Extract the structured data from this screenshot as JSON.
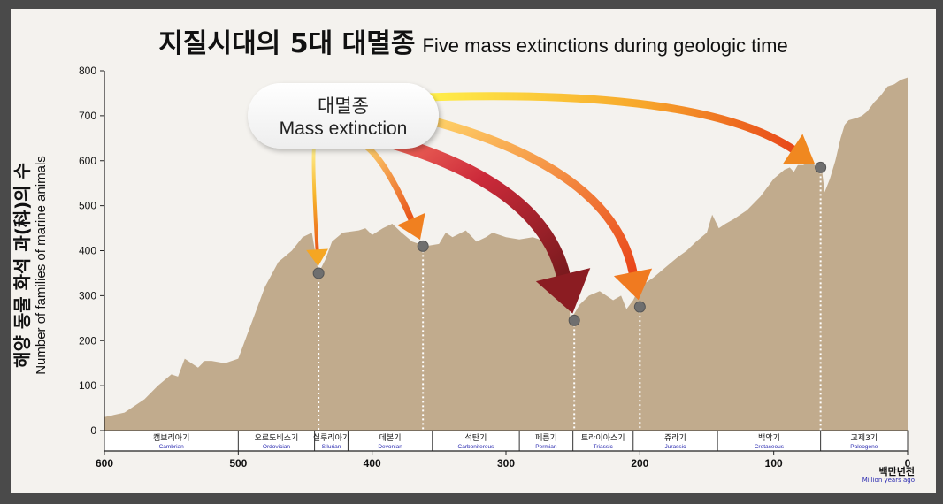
{
  "title": {
    "korean": "지질시대의 5대 대멸종",
    "english": "Five mass extinctions during geologic time"
  },
  "callout": {
    "korean": "대멸종",
    "english": "Mass extinction"
  },
  "chart_data": {
    "type": "area",
    "ylabel_korean": "해양 동물 화석 과(科)의 수",
    "ylabel_english": "Number of families of marine animals",
    "xlabel_korean": "백만년전",
    "xlabel_english": "Million years ago",
    "xlim": [
      600,
      0
    ],
    "ylim": [
      0,
      800
    ],
    "x_ticks": [
      600,
      500,
      400,
      300,
      200,
      100,
      0
    ],
    "y_ticks": [
      0,
      100,
      200,
      300,
      400,
      500,
      600,
      700,
      800
    ],
    "grid": false,
    "fill_color": "#c1ab8d",
    "series": [
      {
        "x": [
          600,
          585,
          570,
          560,
          550,
          545,
          540,
          530,
          525,
          520,
          510,
          500,
          490,
          480,
          470,
          460,
          452,
          445,
          440,
          435,
          430,
          422,
          410,
          405,
          400,
          392,
          385,
          378,
          370,
          360,
          350,
          345,
          340,
          330,
          322,
          315,
          310,
          300,
          290,
          280,
          270,
          260,
          255,
          252,
          249,
          245,
          238,
          230,
          220,
          214,
          210,
          205,
          200,
          195,
          190,
          180,
          172,
          165,
          158,
          150,
          146,
          141,
          136,
          130,
          120,
          110,
          100,
          92,
          88,
          85,
          82,
          78,
          72,
          67,
          64,
          62,
          58,
          54,
          50,
          47,
          44,
          38,
          34,
          30,
          25,
          20,
          15,
          10,
          5,
          0
        ],
        "y": [
          30,
          40,
          70,
          100,
          125,
          120,
          160,
          140,
          155,
          155,
          150,
          160,
          240,
          320,
          375,
          400,
          430,
          440,
          350,
          380,
          420,
          440,
          445,
          450,
          435,
          450,
          460,
          440,
          420,
          410,
          415,
          440,
          430,
          445,
          420,
          430,
          440,
          430,
          425,
          430,
          420,
          410,
          380,
          250,
          260,
          280,
          300,
          310,
          290,
          300,
          270,
          290,
          320,
          330,
          340,
          365,
          385,
          400,
          420,
          440,
          480,
          450,
          460,
          470,
          490,
          520,
          560,
          580,
          585,
          575,
          590,
          590,
          600,
          580,
          580,
          530,
          560,
          600,
          650,
          680,
          690,
          695,
          700,
          710,
          730,
          745,
          765,
          770,
          780,
          785
        ]
      }
    ],
    "eras": [
      {
        "korean": "캠브리아기",
        "english": "Cambrian",
        "start": 600,
        "end": 500
      },
      {
        "korean": "오르도비스기",
        "english": "Ordovician",
        "start": 500,
        "end": 443
      },
      {
        "korean": "실루리아기",
        "english": "Silurian",
        "start": 443,
        "end": 418
      },
      {
        "korean": "데본기",
        "english": "Devonian",
        "start": 418,
        "end": 355
      },
      {
        "korean": "석탄기",
        "english": "Carboniferous",
        "start": 355,
        "end": 290
      },
      {
        "korean": "페름기",
        "english": "Permian",
        "start": 290,
        "end": 250
      },
      {
        "korean": "트라이아스기",
        "english": "Triassic",
        "start": 250,
        "end": 205
      },
      {
        "korean": "쥬라기",
        "english": "Jurassic",
        "start": 205,
        "end": 142
      },
      {
        "korean": "백악기",
        "english": "Cretaceous",
        "start": 142,
        "end": 65
      },
      {
        "korean": "고제3기",
        "english": "Paleogene",
        "start": 65,
        "end": 0
      }
    ],
    "extinction_events": [
      {
        "x": 440,
        "y": 350,
        "arrow_color": "#f5a623"
      },
      {
        "x": 362,
        "y": 410,
        "arrow_color": "#f08020"
      },
      {
        "x": 249,
        "y": 245,
        "arrow_color": "#8b1c22"
      },
      {
        "x": 200,
        "y": 275,
        "arrow_color": "#f07a20"
      },
      {
        "x": 65,
        "y": 585,
        "arrow_color": "#f08820"
      }
    ]
  }
}
